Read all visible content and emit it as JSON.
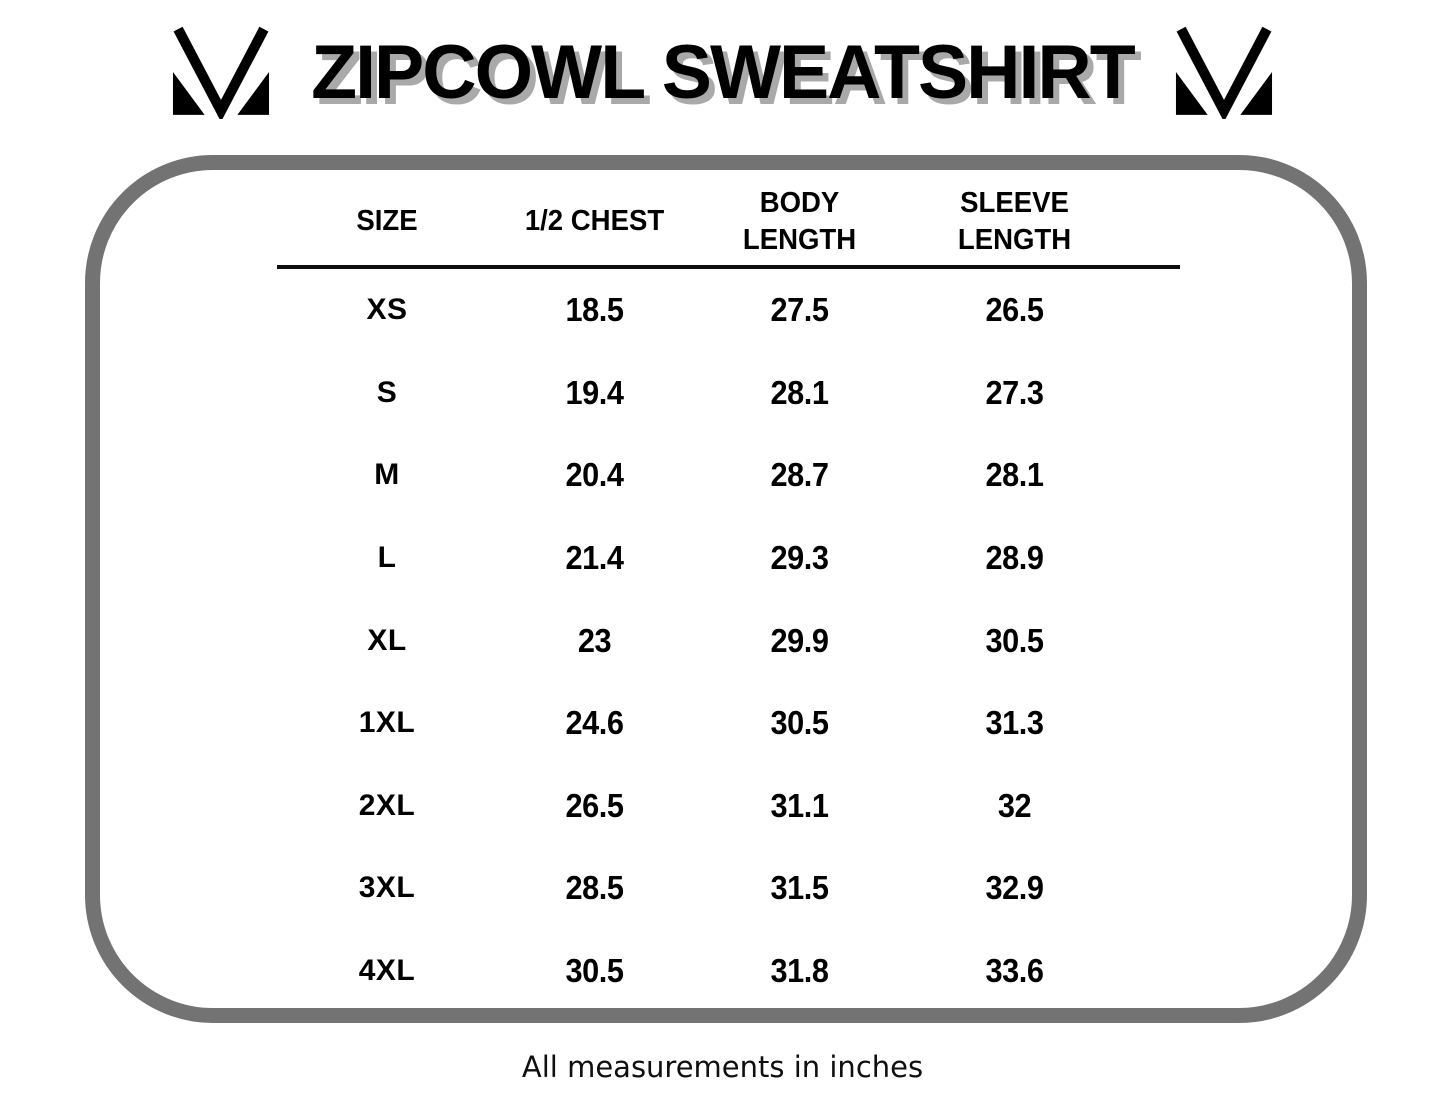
{
  "header": {
    "logo_name": "brand-m-mark"
  },
  "colors": {
    "text": "#000000",
    "frame_gray": "#737373",
    "title_shadow_gray": "#a9a9a9",
    "header_rule": "#0d0d0d"
  },
  "table": {
    "header_display": [
      "SIZE",
      "1/2 CHEST",
      "BODY\nLENGTH",
      "SLEEVE\nLENGTH"
    ]
  },
  "chart_data": {
    "type": "table",
    "title": "ZIPCOWL SWEATSHIRT",
    "columns": [
      "SIZE",
      "1/2 CHEST",
      "BODY LENGTH",
      "SLEEVE LENGTH"
    ],
    "rows": [
      [
        "XS",
        "18.5",
        "27.5",
        "26.5"
      ],
      [
        "S",
        "19.4",
        "28.1",
        "27.3"
      ],
      [
        "M",
        "20.4",
        "28.7",
        "28.1"
      ],
      [
        "L",
        "21.4",
        "29.3",
        "28.9"
      ],
      [
        "XL",
        "23",
        "29.9",
        "30.5"
      ],
      [
        "1XL",
        "24.6",
        "30.5",
        "31.3"
      ],
      [
        "2XL",
        "26.5",
        "31.1",
        "32"
      ],
      [
        "3XL",
        "28.5",
        "31.5",
        "32.9"
      ],
      [
        "4XL",
        "30.5",
        "31.8",
        "33.6"
      ]
    ],
    "units_note": "All measurements in inches",
    "footnote": "All measurements in inches",
    "layout": {
      "grid": "off",
      "header_rule": "single horizontal line under column headers"
    }
  }
}
